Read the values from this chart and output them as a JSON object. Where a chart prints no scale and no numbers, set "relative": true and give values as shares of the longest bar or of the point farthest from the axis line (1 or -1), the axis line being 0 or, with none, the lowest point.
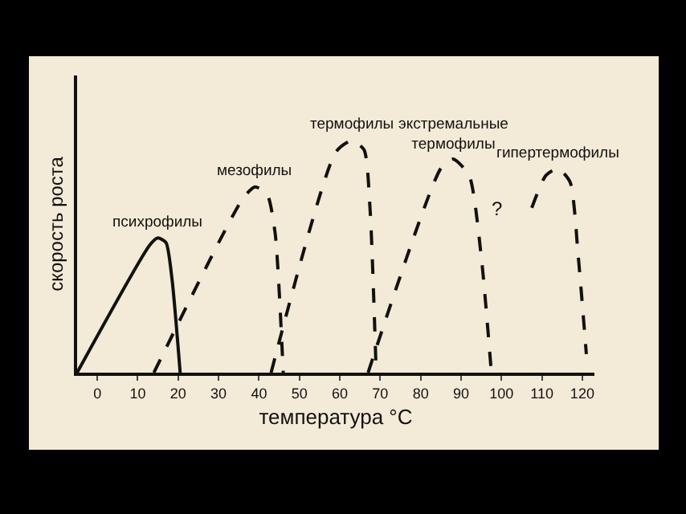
{
  "chart_data": {
    "type": "line",
    "relative": true,
    "xlabel": "температура °C",
    "ylabel": "скорость роста",
    "xlim": [
      -5,
      123
    ],
    "xticks": [
      0,
      10,
      20,
      30,
      40,
      50,
      60,
      70,
      80,
      90,
      100,
      110,
      120
    ],
    "series": [
      {
        "name": "психрофилы",
        "color": "#111111",
        "line_style": "solid",
        "x": [
          -5,
          13,
          15,
          17,
          18.5,
          20.5
        ],
        "values": [
          0,
          0.55,
          0.58,
          0.56,
          0.4,
          0
        ]
      },
      {
        "name": "мезофилы",
        "color": "#111111",
        "line_style": "dashed",
        "x": [
          14,
          36,
          39,
          42,
          44,
          46
        ],
        "values": [
          0,
          0.75,
          0.8,
          0.77,
          0.6,
          0
        ]
      },
      {
        "name": "термофилы",
        "color": "#111111",
        "line_style": "dashed",
        "x": [
          43,
          59,
          63,
          66,
          67.5,
          69
        ],
        "values": [
          0,
          0.95,
          1,
          0.96,
          0.7,
          0
        ]
      },
      {
        "name": "экстремальные\nтермофилы",
        "color": "#111111",
        "line_style": "dashed",
        "x": [
          67,
          85,
          88,
          92,
          95,
          97.5
        ],
        "values": [
          0,
          0.88,
          0.92,
          0.85,
          0.5,
          0
        ]
      },
      {
        "name": "гипертермофилы",
        "color": "#111111",
        "line_style": "dashed",
        "x": [
          107.5,
          111,
          114,
          117,
          119,
          121
        ],
        "values": [
          0.71,
          0.85,
          0.88,
          0.82,
          0.5,
          0.08
        ]
      }
    ],
    "annotations": [
      "?"
    ],
    "grid": false,
    "legend": false
  }
}
